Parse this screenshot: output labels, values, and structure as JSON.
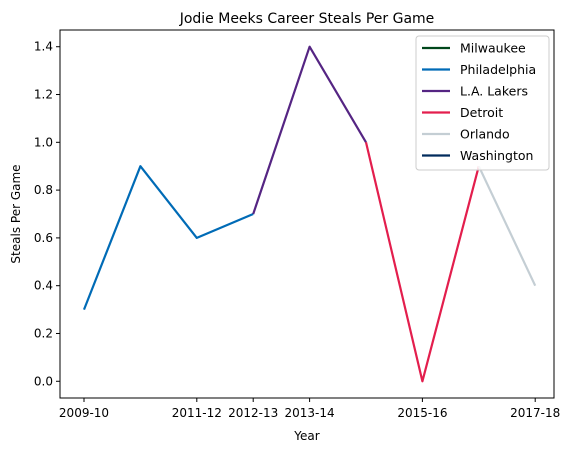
{
  "chart_data": {
    "type": "line",
    "title": "Jodie Meeks Career Steals Per Game",
    "xlabel": "Year",
    "ylabel": "Steals Per Game",
    "x_tick_labels": [
      "2009-10",
      "2011-12",
      "2012-13",
      "2013-14",
      "2015-16",
      "2017-18"
    ],
    "y_ticks": [
      0.0,
      0.2,
      0.4,
      0.6,
      0.8,
      1.0,
      1.2,
      1.4
    ],
    "y_tick_labels": [
      "0.0",
      "0.2",
      "0.4",
      "0.6",
      "0.8",
      "1.0",
      "1.2",
      "1.4"
    ],
    "x_categories": [
      "2009-10",
      "2010-11",
      "2011-12",
      "2012-13",
      "2013-14",
      "2014-15",
      "2015-16",
      "2016-17",
      "2017-18"
    ],
    "ylim": [
      -0.07,
      1.47
    ],
    "grid": false,
    "legend_position": "top-right",
    "series": [
      {
        "name": "Milwaukee",
        "color": "#00471b",
        "points": [
          {
            "x": "2009-10",
            "y": 0.3
          }
        ]
      },
      {
        "name": "Philadelphia",
        "color": "#006bb6",
        "points": [
          {
            "x": "2009-10",
            "y": 0.3
          },
          {
            "x": "2010-11",
            "y": 0.9
          },
          {
            "x": "2011-12",
            "y": 0.6
          },
          {
            "x": "2012-13",
            "y": 0.7
          }
        ]
      },
      {
        "name": "L.A. Lakers",
        "color": "#552583",
        "points": [
          {
            "x": "2012-13",
            "y": 0.7
          },
          {
            "x": "2013-14",
            "y": 1.4
          },
          {
            "x": "2014-15",
            "y": 1.0
          }
        ]
      },
      {
        "name": "Detroit",
        "color": "#e31e4d",
        "points": [
          {
            "x": "2014-15",
            "y": 1.0
          },
          {
            "x": "2015-16",
            "y": 0.0
          },
          {
            "x": "2016-17",
            "y": 0.9
          }
        ]
      },
      {
        "name": "Orlando",
        "color": "#c4ced4",
        "points": [
          {
            "x": "2016-17",
            "y": 0.9
          },
          {
            "x": "2017-18",
            "y": 0.4
          }
        ]
      },
      {
        "name": "Washington",
        "color": "#002b5c",
        "points": []
      }
    ]
  }
}
